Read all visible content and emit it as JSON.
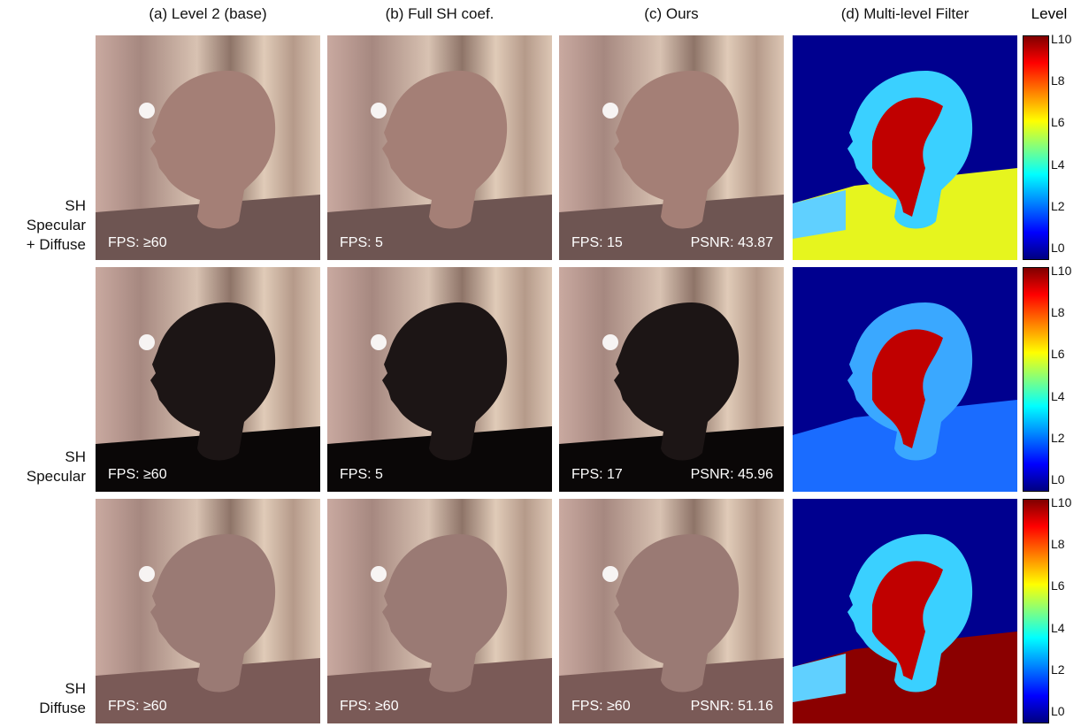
{
  "columns": [
    "(a) Level 2 (base)",
    "(b) Full SH coef.",
    "(c) Ours",
    "(d) Multi-level Filter"
  ],
  "colorbar": {
    "title": "Level",
    "ticks": [
      "L10",
      "L8",
      "L6",
      "L4",
      "L2",
      "L0"
    ]
  },
  "rows": [
    {
      "label": [
        "SH",
        "Specular",
        "+ Diffuse"
      ],
      "fps": [
        "FPS: ≥60",
        "FPS: 5",
        "FPS: 15"
      ],
      "psnr": "PSNR: 43.87"
    },
    {
      "label": [
        "SH",
        "Specular"
      ],
      "fps": [
        "FPS: ≥60",
        "FPS: 5",
        "FPS: 17"
      ],
      "psnr": "PSNR: 45.96"
    },
    {
      "label": [
        "SH",
        "Diffuse"
      ],
      "fps": [
        "FPS: ≥60",
        "FPS: ≥60",
        "FPS: ≥60"
      ],
      "psnr": "PSNR: 51.16"
    }
  ]
}
